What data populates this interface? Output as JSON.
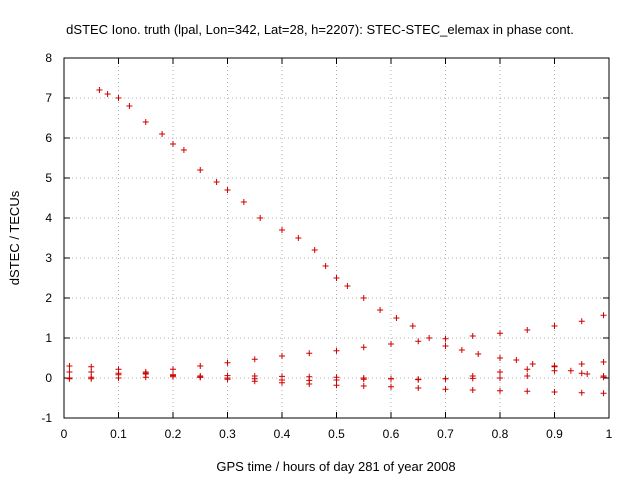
{
  "chart_data": {
    "type": "scatter",
    "title": "dSTEC Iono. truth (lpal, Lon=342, Lat=28, h=2207): STEC-STEC_elemax in phase cont.",
    "xlabel": "GPS time / hours of day 281 of year 2008",
    "ylabel": "dSTEC  / TECUs",
    "xlim": [
      0,
      1
    ],
    "ylim": [
      -1,
      8
    ],
    "xticks": [
      "0",
      "0.1",
      "0.2",
      "0.3",
      "0.4",
      "0.5",
      "0.6",
      "0.7",
      "0.8",
      "0.9",
      "1"
    ],
    "yticks": [
      "-1",
      "0",
      "1",
      "2",
      "3",
      "4",
      "5",
      "6",
      "7",
      "8"
    ],
    "grid": true,
    "marker": "plus",
    "color": "#cc0000",
    "series": [
      {
        "x": [
          0.065,
          0.08,
          0.1,
          0.12,
          0.15,
          0.18,
          0.2,
          0.22,
          0.25,
          0.28,
          0.3,
          0.33,
          0.36,
          0.4,
          0.43,
          0.46,
          0.48,
          0.5,
          0.52,
          0.55,
          0.58,
          0.61,
          0.64,
          0.67,
          0.7,
          0.73,
          0.76,
          0.8,
          0.83,
          0.86,
          0.9,
          0.93,
          0.96,
          0.99
        ],
        "y": [
          7.2,
          7.1,
          7.0,
          6.8,
          6.4,
          6.1,
          5.85,
          5.7,
          5.2,
          4.9,
          4.7,
          4.4,
          4.0,
          3.7,
          3.5,
          3.2,
          2.8,
          2.5,
          2.3,
          2.0,
          1.7,
          1.5,
          1.3,
          1.0,
          0.8,
          0.7,
          0.6,
          0.5,
          0.45,
          0.35,
          0.28,
          0.18,
          0.1,
          0.02
        ]
      },
      {
        "x": [
          0.01,
          0.05,
          0.1,
          0.15,
          0.2,
          0.25,
          0.3,
          0.35,
          0.4,
          0.45,
          0.5,
          0.55,
          0.6,
          0.65,
          0.7,
          0.75,
          0.8,
          0.85,
          0.9,
          0.95,
          0.99
        ],
        "y": [
          0.0,
          0.02,
          0.08,
          0.12,
          0.22,
          0.3,
          0.38,
          0.47,
          0.55,
          0.62,
          0.68,
          0.77,
          0.85,
          0.92,
          0.98,
          1.05,
          1.12,
          1.2,
          1.3,
          1.42,
          1.57
        ]
      },
      {
        "x": [
          0.01,
          0.05,
          0.1,
          0.15,
          0.2,
          0.25,
          0.3,
          0.35,
          0.4,
          0.45,
          0.5,
          0.55,
          0.6,
          0.65,
          0.7,
          0.75,
          0.8,
          0.85,
          0.9,
          0.95,
          0.99
        ],
        "y": [
          0.3,
          0.28,
          0.22,
          0.15,
          0.08,
          0.02,
          -0.03,
          -0.08,
          -0.12,
          -0.15,
          -0.18,
          -0.2,
          -0.22,
          -0.25,
          -0.28,
          -0.3,
          -0.32,
          -0.33,
          -0.35,
          -0.37,
          -0.38
        ]
      },
      {
        "x": [
          0.01,
          0.05,
          0.1,
          0.15,
          0.2,
          0.25,
          0.3,
          0.35,
          0.4,
          0.45,
          0.5,
          0.55,
          0.6,
          0.65,
          0.7,
          0.75,
          0.8,
          0.85,
          0.9,
          0.95,
          0.99
        ],
        "y": [
          0.15,
          0.15,
          0.12,
          0.1,
          0.06,
          0.02,
          0.0,
          -0.02,
          -0.05,
          -0.06,
          -0.05,
          -0.03,
          -0.02,
          -0.04,
          -0.02,
          0.05,
          0.15,
          0.22,
          0.3,
          0.35,
          0.4
        ]
      },
      {
        "x": [
          0.01,
          0.05,
          0.1,
          0.15,
          0.2,
          0.25,
          0.3,
          0.35,
          0.4,
          0.45,
          0.5,
          0.55,
          0.6,
          0.65,
          0.7,
          0.75,
          0.8,
          0.85,
          0.9,
          0.95,
          0.99
        ],
        "y": [
          -0.02,
          -0.02,
          0.0,
          0.02,
          0.03,
          0.05,
          0.06,
          0.05,
          0.04,
          0.03,
          0.02,
          0.0,
          -0.02,
          -0.03,
          -0.02,
          -0.01,
          0.0,
          0.05,
          0.18,
          0.12,
          0.05
        ]
      }
    ]
  }
}
